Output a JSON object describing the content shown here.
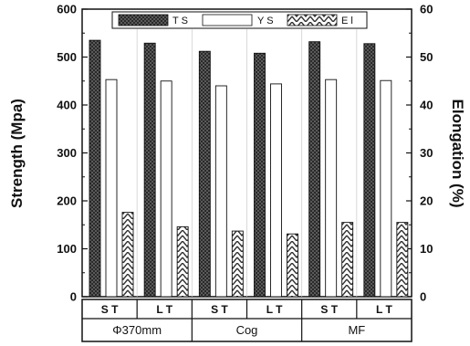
{
  "chart_data": {
    "type": "bar",
    "categories": [
      "S T",
      "L T",
      "S T",
      "L T",
      "S T",
      "L T"
    ],
    "groups": [
      "Φ370mm",
      "Cog",
      "MF"
    ],
    "series": [
      {
        "name": "T S",
        "axis": "left",
        "pattern": "dark-checker",
        "values": [
          535,
          529,
          512,
          508,
          532,
          528
        ]
      },
      {
        "name": "Y S",
        "axis": "left",
        "pattern": "white",
        "values": [
          453,
          450,
          440,
          444,
          453,
          451
        ]
      },
      {
        "name": "E l",
        "axis": "right",
        "pattern": "zigzag",
        "values": [
          17.6,
          14.6,
          13.7,
          13.1,
          15.5,
          15.5
        ]
      }
    ],
    "ylabel": "Strength (Mpa)",
    "ylabel_right": "Elongation (%)",
    "ylim": [
      0,
      600
    ],
    "ylim_right": [
      0,
      60
    ],
    "yticks": [
      "0",
      "100",
      "200",
      "300",
      "400",
      "500",
      "600"
    ],
    "yticks_right": [
      "0",
      "10",
      "20",
      "30",
      "40",
      "50",
      "60"
    ],
    "grid": false,
    "legend_position": "top-center"
  }
}
